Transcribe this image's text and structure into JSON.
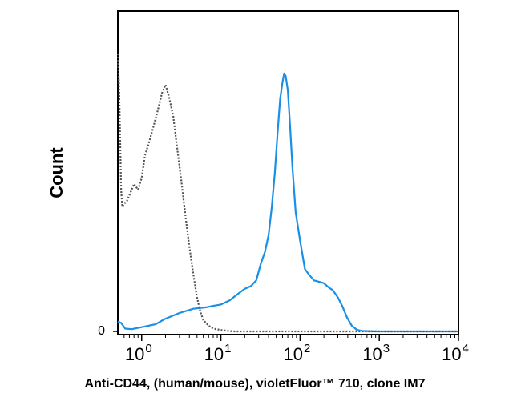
{
  "chart_data": {
    "type": "line",
    "title": "",
    "xlabel": "Anti-CD44, (human/mouse), violetFluor™ 710, clone IM7",
    "ylabel": "Count",
    "x_scale": "log",
    "xlim": [
      0.5,
      10000
    ],
    "ylim": [
      0,
      100
    ],
    "grid": false,
    "legend": "none",
    "x_ticks": [
      {
        "value": 1,
        "base": "10",
        "exp": "0"
      },
      {
        "value": 10,
        "base": "10",
        "exp": "1"
      },
      {
        "value": 100,
        "base": "10",
        "exp": "2"
      },
      {
        "value": 1000,
        "base": "10",
        "exp": "3"
      },
      {
        "value": 10000,
        "base": "10",
        "exp": "4"
      }
    ],
    "y_ticks": [
      {
        "value": 0,
        "label": "0"
      }
    ],
    "series": [
      {
        "color": "#1a8fe6",
        "style": "solid",
        "x": [
          0.5,
          0.55,
          0.62,
          0.75,
          1.0,
          1.5,
          2.0,
          3.0,
          4.5,
          6.5,
          8.0,
          10,
          13,
          16,
          20,
          24,
          28,
          32,
          36,
          40,
          44,
          48,
          52,
          56,
          60,
          63,
          66,
          70,
          75,
          80,
          88,
          100,
          115,
          130,
          150,
          175,
          200,
          230,
          260,
          300,
          340,
          390,
          450,
          520,
          600,
          700,
          1000,
          10000
        ],
        "y": [
          3.5,
          3.0,
          1.0,
          0.8,
          1.5,
          2.5,
          4.5,
          6.5,
          8.0,
          8.5,
          9.0,
          9.5,
          11,
          13,
          15,
          16,
          18,
          24,
          28,
          34,
          44,
          56,
          70,
          82,
          88,
          91,
          90,
          85,
          72,
          58,
          42,
          32,
          22,
          20,
          18,
          17.5,
          17,
          15.5,
          14.5,
          12,
          9,
          5,
          2,
          0.6,
          0.2,
          0.1,
          0,
          0
        ]
      },
      {
        "color": "#555555",
        "style": "dotted",
        "x": [
          0.5,
          0.52,
          0.55,
          0.57,
          0.6,
          0.65,
          0.7,
          0.8,
          0.9,
          1.0,
          1.1,
          1.25,
          1.4,
          1.6,
          1.8,
          2.0,
          2.2,
          2.5,
          2.8,
          3.2,
          3.6,
          4.0,
          4.5,
          5.0,
          5.5,
          6.0,
          7.0,
          8.0,
          10,
          12,
          15,
          10000
        ],
        "y": [
          98,
          85,
          50,
          44,
          45,
          46,
          48,
          52,
          50,
          54,
          62,
          67,
          72,
          78,
          84,
          87,
          83,
          76,
          65,
          52,
          40,
          30,
          20,
          12,
          7,
          4,
          2,
          1,
          0.5,
          0.2,
          0,
          0
        ]
      }
    ]
  }
}
